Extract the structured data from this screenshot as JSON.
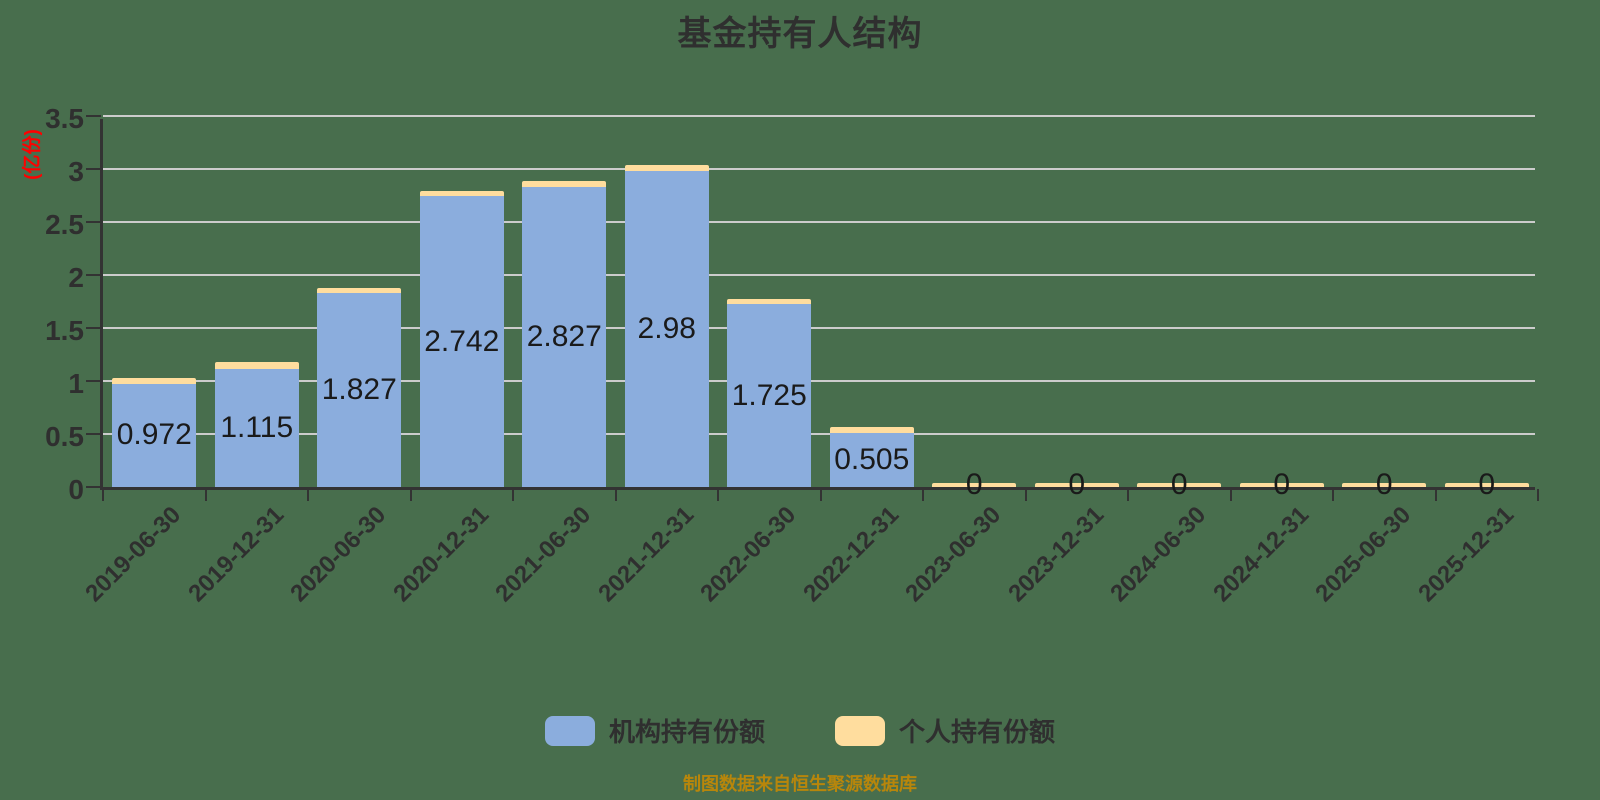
{
  "title": {
    "text": "基金持有人结构"
  },
  "colors": {
    "background": "#486E4D",
    "institution": "#8BADDD",
    "personal": "#FFDD9E",
    "axis": "#333333",
    "grid": "#CCCCCC",
    "text": "#2F2F2F",
    "value_label": "#1A1A1A",
    "unit_label": "#FF0000",
    "footer": "#B8860B"
  },
  "y_axis": {
    "unit_label": "(亿份)",
    "ticks": [
      "0",
      "0.5",
      "1",
      "1.5",
      "2",
      "2.5",
      "3",
      "3.5"
    ],
    "max": 3.5
  },
  "chart_data": {
    "type": "bar",
    "stacked": true,
    "title": "基金持有人结构",
    "categories": [
      "2019-06-30",
      "2019-12-31",
      "2020-06-30",
      "2020-12-31",
      "2021-06-30",
      "2021-12-31",
      "2022-06-30",
      "2022-12-31",
      "2023-06-30",
      "2023-12-31",
      "2024-06-30",
      "2024-12-31",
      "2025-06-30",
      "2025-12-31"
    ],
    "series": [
      {
        "name": "机构持有份额",
        "color": "#8BADDD",
        "values": [
          0.972,
          1.115,
          1.827,
          2.742,
          2.827,
          2.98,
          1.725,
          0.505,
          0,
          0,
          0,
          0,
          0,
          0
        ]
      },
      {
        "name": "个人持有份额",
        "color": "#FFDD9E",
        "values": [
          0.06,
          0.06,
          0.05,
          0.05,
          0.06,
          0.06,
          0.05,
          0.06,
          0.035,
          0.035,
          0.035,
          0.035,
          0.035,
          0.035
        ]
      }
    ],
    "bar_labels": [
      "0.972",
      "1.115",
      "1.827",
      "2.742",
      "2.827",
      "2.98",
      "1.725",
      "0.505",
      "0",
      "0",
      "0",
      "0",
      "0",
      "0"
    ],
    "ylabel": "(亿份)",
    "ylim": [
      0,
      3.5
    ],
    "grid": true,
    "legend_position": "bottom"
  },
  "legend": {
    "items": [
      {
        "label": "机构持有份额",
        "color": "#8BADDD"
      },
      {
        "label": "个人持有份额",
        "color": "#FFDD9E"
      }
    ]
  },
  "footer": {
    "source_note": "制图数据来自恒生聚源数据库"
  }
}
